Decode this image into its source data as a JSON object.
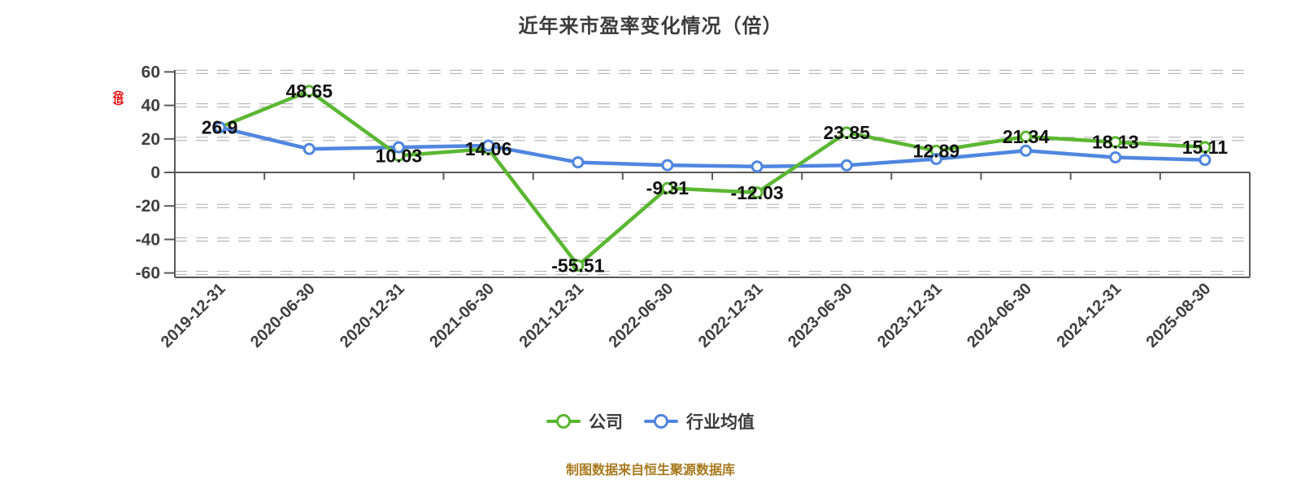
{
  "title": "近年来市盈率变化情况（倍）",
  "y_axis_unit": "（倍）",
  "footer": "制图数据来自恒生聚源数据库",
  "legend": {
    "items": [
      {
        "label": "公司",
        "color": "#5bb732"
      },
      {
        "label": "行业均值",
        "color": "#4f86e0"
      }
    ],
    "position": "bottom"
  },
  "chart_data": {
    "type": "line",
    "title": "近年来市盈率变化情况（倍）",
    "categories": [
      "2019-12-31",
      "2020-06-30",
      "2020-12-31",
      "2021-06-30",
      "2021-12-31",
      "2022-06-30",
      "2022-12-31",
      "2023-06-30",
      "2023-12-31",
      "2024-06-30",
      "2024-12-31",
      "2025-08-30"
    ],
    "series": [
      {
        "name": "公司",
        "color": "#5bb732",
        "values": [
          26.9,
          48.65,
          10.03,
          14.06,
          -55.51,
          -9.31,
          -12.03,
          23.85,
          12.89,
          21.34,
          18.13,
          15.11
        ],
        "point_labels": [
          "26.9",
          "48.65",
          "10.03",
          "14.06",
          "-55.51",
          "-9.31",
          "-12.03",
          "23.85",
          "12.89",
          "21.34",
          "18.13",
          "15.11"
        ],
        "labeled": true
      },
      {
        "name": "行业均值",
        "color": "#4f86e0",
        "values": [
          26.9,
          14,
          15,
          16,
          6,
          4.3,
          3.5,
          4.2,
          8,
          13,
          9,
          7.5
        ],
        "labeled": false,
        "note": "values estimated from pixels; no data labels shown"
      }
    ],
    "ylim": [
      -60,
      60
    ],
    "y_ticks": [
      60,
      40,
      20,
      0,
      -20,
      -40,
      -60
    ],
    "grid": "dashed-horizontal",
    "x_label_rotation": -45,
    "legend_position": "bottom",
    "colors": {
      "axis": "#595959",
      "tick_text": "#3f3f3f",
      "data_label": "#111111",
      "grid_core": "#ffffff",
      "grid_halo": "#ababab"
    }
  }
}
